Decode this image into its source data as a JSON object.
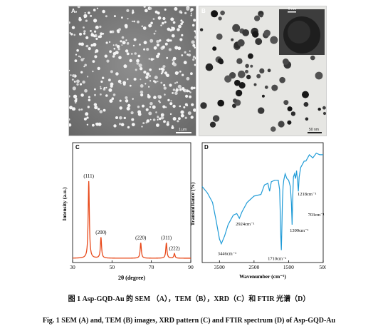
{
  "panels": {
    "A": {
      "letter": "A",
      "scale_label": "1 μm"
    },
    "B": {
      "letter": "B",
      "inset_label": "5 nm",
      "scale_label": "50 nm"
    },
    "C": {
      "letter": "C",
      "line_color": "#e8491a",
      "chart_data": {
        "type": "line",
        "title": "",
        "xlabel": "2θ (degree)",
        "ylabel": "Intensity (a.u.)",
        "xlim": [
          30,
          90
        ],
        "xticks": [
          30,
          50,
          70,
          90
        ],
        "grid": false,
        "peaks": [
          {
            "label": "(111)",
            "x": 38.2,
            "intensity": 1.0
          },
          {
            "label": "(200)",
            "x": 44.4,
            "intensity": 0.27
          },
          {
            "label": "(220)",
            "x": 64.6,
            "intensity": 0.2
          },
          {
            "label": "(311)",
            "x": 77.6,
            "intensity": 0.2
          },
          {
            "label": "(222)",
            "x": 81.7,
            "intensity": 0.06
          }
        ]
      }
    },
    "D": {
      "letter": "D",
      "line_color": "#1f9bd7",
      "chart_data": {
        "type": "line",
        "title": "",
        "xlabel": "Wavenumber (cm⁻¹)",
        "ylabel": "Transmittance (%)",
        "xlim": [
          4000,
          500
        ],
        "xticks": [
          3500,
          2500,
          1500,
          500
        ],
        "grid": false,
        "series": [
          {
            "x": [
              4000,
              3850,
              3700,
              3600,
              3500,
              3446,
              3350,
              3250,
              3100,
              3000,
              2924,
              2850,
              2700,
              2500,
              2300,
              2200,
              2100,
              2050,
              2000,
              1900,
              1800,
              1760,
              1740,
              1725,
              1710,
              1695,
              1680,
              1660,
              1640,
              1600,
              1550,
              1500,
              1450,
              1420,
              1399,
              1380,
              1360,
              1330,
              1300,
              1270,
              1240,
              1218,
              1195,
              1150,
              1100,
              1050,
              1000,
              900,
              800,
              700,
              600,
              500
            ],
            "y": [
              76,
              72,
              66,
              55,
              43,
              40,
              45,
              52,
              58,
              59,
              56,
              60,
              66,
              70,
              71,
              77,
              78,
              73,
              79,
              80,
              80,
              74,
              58,
              44,
              36,
              50,
              66,
              76,
              80,
              84,
              81,
              80,
              76,
              66,
              52,
              70,
              82,
              84,
              81,
              86,
              79,
              73,
              82,
              88,
              90,
              92,
              92,
              96,
              94,
              97,
              96,
              96
            ]
          }
        ],
        "annotations": [
          {
            "label": "3446cm⁻¹",
            "x": 3446
          },
          {
            "label": "2924cm⁻¹",
            "x": 2924
          },
          {
            "label": "1710cm⁻¹",
            "x": 1710
          },
          {
            "label": "1399cm⁻¹",
            "x": 1399
          },
          {
            "label": "1218cm⁻¹",
            "x": 1218
          },
          {
            "label": "703cm⁻¹",
            "x": 703
          }
        ]
      }
    }
  },
  "captions": {
    "chinese": "图 1 Asp-GQD-Au 的 SEM （A），TEM（B），XRD（C）和 FTIR 光谱（D）",
    "english": "Fig. 1 SEM (A) and, TEM (B) images, XRD pattern (C) and FTIR spectrum (D) of Asp-GQD-Au"
  }
}
